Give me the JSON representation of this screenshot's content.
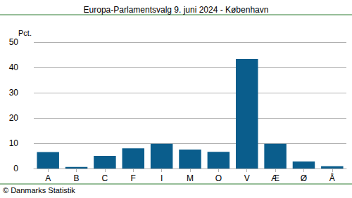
{
  "chart_data": {
    "type": "bar",
    "title": "Europa-Parlamentsvalg 9. juni 2024 - København",
    "y_label": "Pct.",
    "source": "© Danmarks Statistik",
    "categories": [
      "A",
      "B",
      "C",
      "F",
      "I",
      "M",
      "O",
      "V",
      "Æ",
      "Ø",
      "Å"
    ],
    "values": [
      6.5,
      0.6,
      5.0,
      8.0,
      9.8,
      7.5,
      6.6,
      43.3,
      9.8,
      2.8,
      0.9
    ],
    "color": "#0a5d8c",
    "ylim": [
      0,
      50
    ],
    "yticks": [
      0,
      10,
      20,
      30,
      40,
      50
    ],
    "grid": true
  }
}
